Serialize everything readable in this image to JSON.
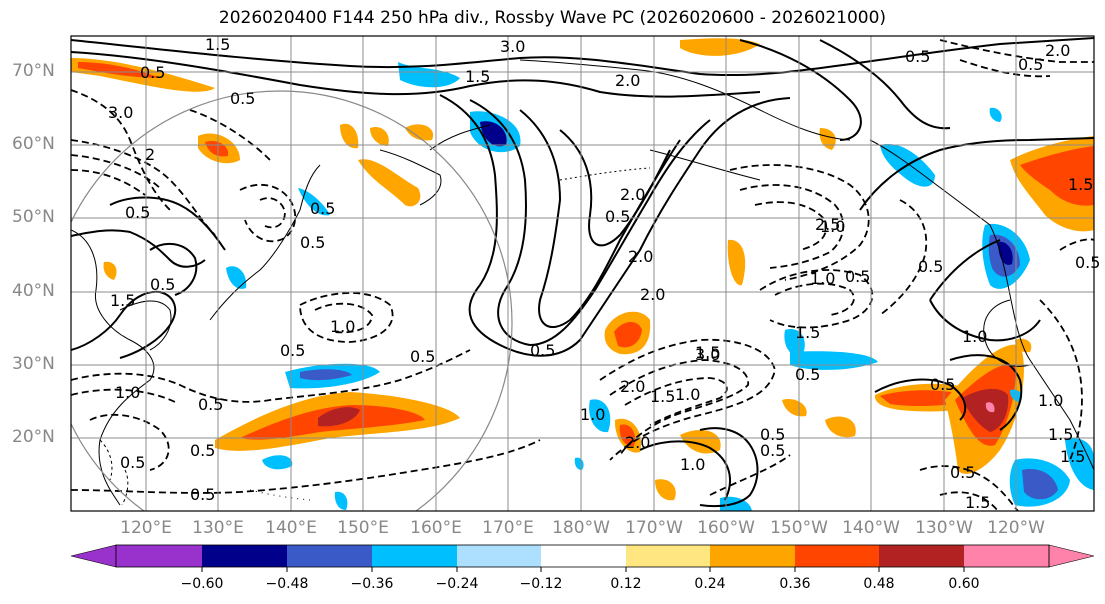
{
  "title": "2026020400 F144 250 hPa div., Rossby Wave PC (2026020600 - 2026021000)",
  "lat_labels": [
    "70°N",
    "60°N",
    "50°N",
    "40°N",
    "30°N",
    "20°N"
  ],
  "lon_labels": [
    "120°E",
    "130°E",
    "140°E",
    "150°E",
    "160°E",
    "170°E",
    "180°W",
    "170°W",
    "160°W",
    "150°W",
    "140°W",
    "130°W",
    "120°W"
  ],
  "contour_labels": [
    "1.5",
    "3.0",
    "2.0",
    "1.5",
    "0.5",
    "0.5",
    "2.0",
    "0.5",
    "3.0",
    "0.5",
    "2",
    "1.5",
    "0.5",
    "2.0",
    "1.0",
    "0.5",
    "0.5",
    "0.5",
    "2.0",
    "0.5",
    "1.0",
    "2.0",
    "0.5",
    "1.0",
    "0.5",
    "0.5",
    "0.5",
    "1.5",
    "1.0",
    "0.5",
    "1.0",
    "1.5",
    "2.0",
    "1.5",
    "1.0",
    "0.5",
    "1.0",
    "0.5",
    "2.0",
    "0.5",
    "3.0",
    "2.5",
    "1.5",
    "0.5",
    "1.0",
    "0.5",
    "0.5",
    "0.5",
    "1.5",
    "0.5",
    "1.5",
    "0.5",
    "1.0",
    "0.5",
    "1.5"
  ],
  "colorbar": {
    "tick_labels": [
      "−0.60",
      "−0.48",
      "−0.36",
      "−0.24",
      "−0.12",
      "0.12",
      "0.24",
      "0.36",
      "0.48",
      "0.60"
    ],
    "colors": [
      "#9932CC",
      "#00008B",
      "#3A5BC7",
      "#00BFFF",
      "#ADDFFF",
      "#FFFFFF",
      "#FFE680",
      "#FFA500",
      "#FF4500",
      "#B22222",
      "#FF82AB"
    ]
  },
  "anomaly_colors": {
    "neg_strong": "#00008B",
    "neg_mid": "#3A5BC7",
    "neg": "#00BFFF",
    "neg_weak": "#ADDFFF",
    "pos_weak": "#FFE680",
    "pos": "#FFA500",
    "pos_mid": "#FF4500",
    "pos_strong": "#B22222"
  }
}
